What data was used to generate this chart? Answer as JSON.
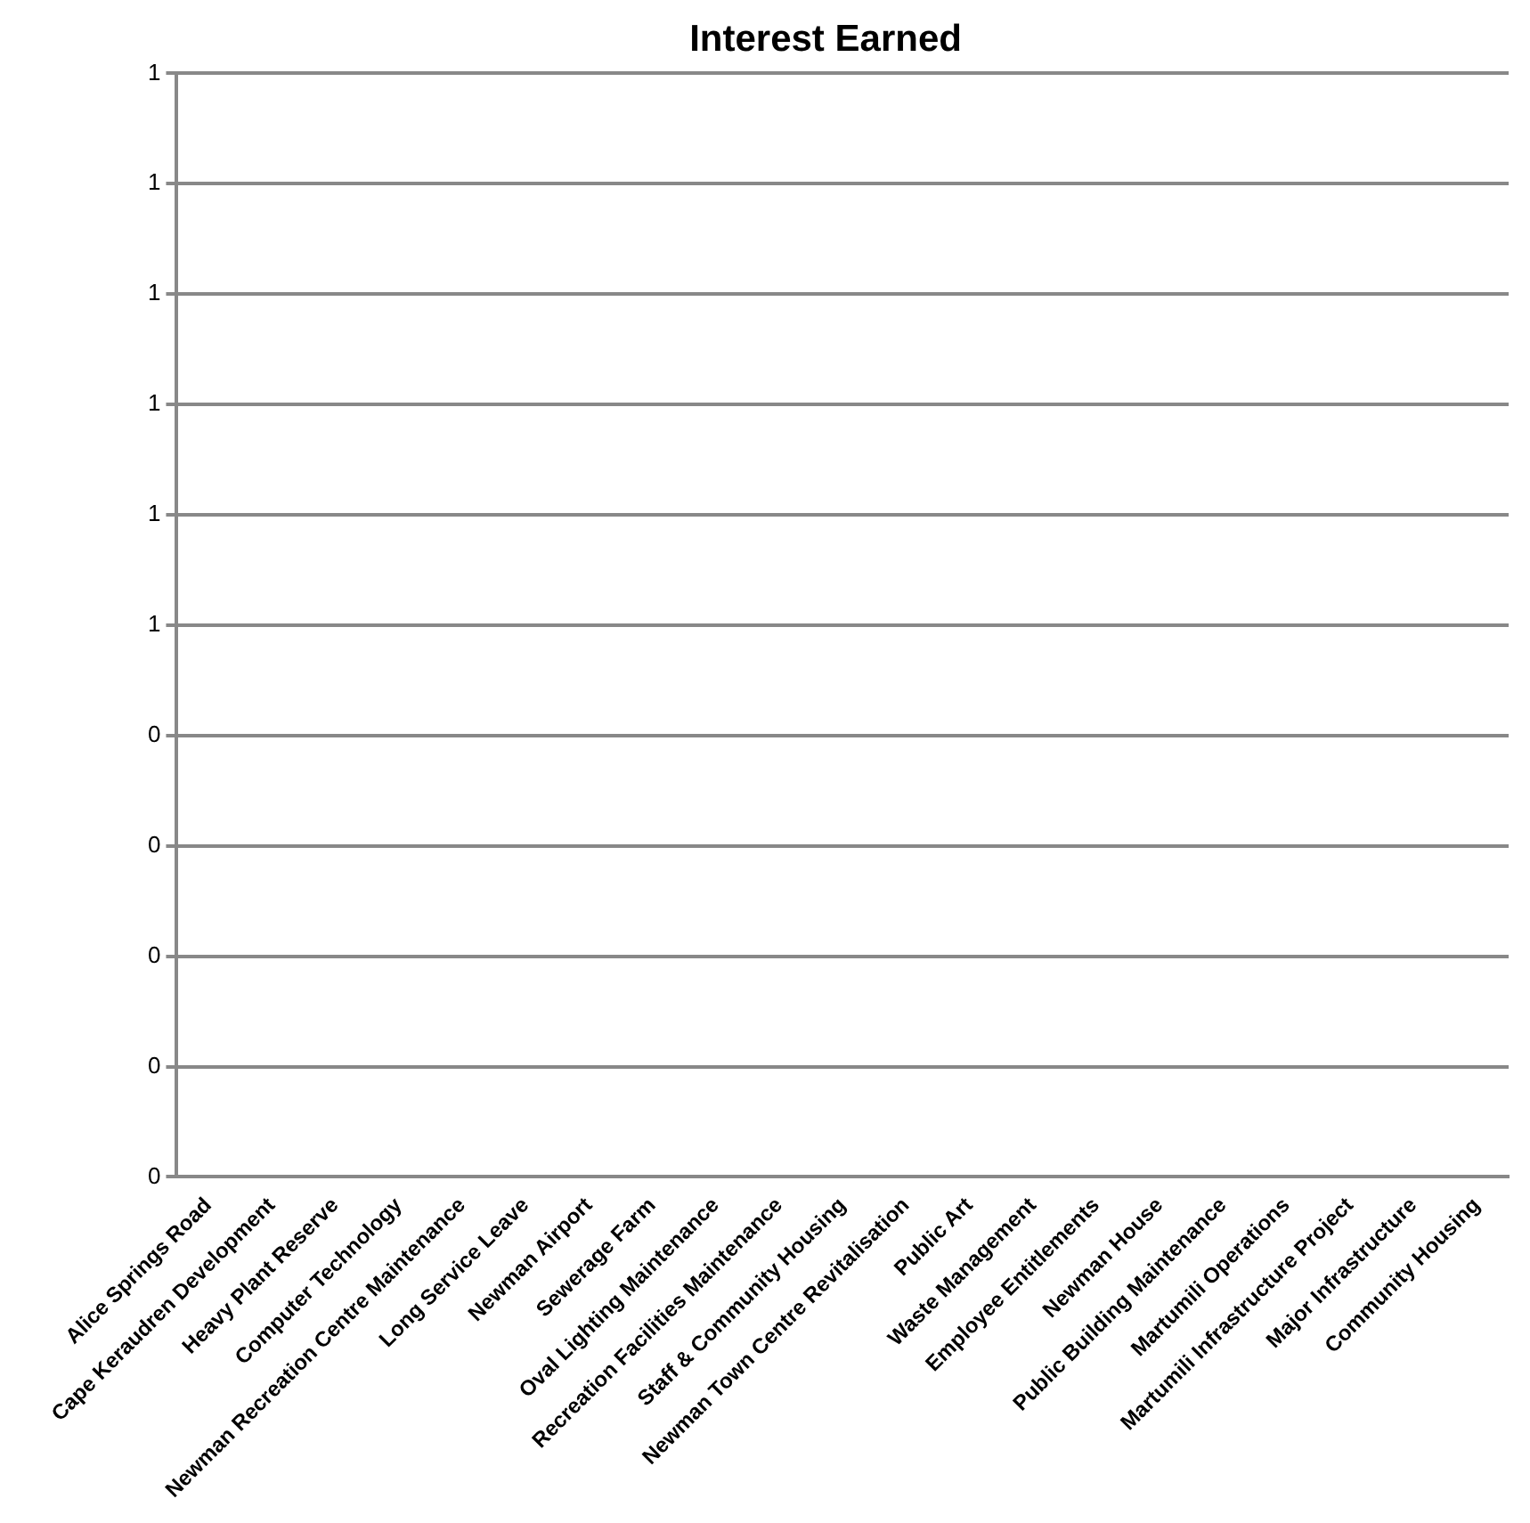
{
  "chart_data": {
    "type": "bar",
    "title": "Interest Earned",
    "categories": [
      "Alice Springs Road",
      "Cape Keraudren Development",
      "Heavy Plant Reserve",
      "Computer Technology",
      "Newman Recreation Centre Maintenance",
      "Long Service Leave",
      "Newman Airport",
      "Sewerage Farm",
      "Oval Lighting Maintenance",
      "Recreation Facilities Maintenance",
      "Staff & Community Housing",
      "Newman Town Centre Revitalisation",
      "Public Art",
      "Waste Management",
      "Employee Entitlements",
      "Newman House",
      "Public Building Maintenance",
      "Martumili Operations",
      "Martumili Infrastructure Project",
      "Major Infrastructure",
      "Community Housing"
    ],
    "values": [
      0,
      0,
      0,
      0,
      0,
      0,
      0,
      0,
      0,
      0,
      0,
      0,
      0,
      0,
      0,
      0,
      0,
      0,
      0,
      0,
      0
    ],
    "ylim": [
      0,
      1
    ],
    "yticks": [
      {
        "value": 0,
        "label": "0"
      },
      {
        "value": 0.1,
        "label": "0"
      },
      {
        "value": 0.2,
        "label": "0"
      },
      {
        "value": 0.3,
        "label": "0"
      },
      {
        "value": 0.4,
        "label": "0"
      },
      {
        "value": 0.5,
        "label": "1"
      },
      {
        "value": 0.6,
        "label": "1"
      },
      {
        "value": 0.7,
        "label": "1"
      },
      {
        "value": 0.8,
        "label": "1"
      },
      {
        "value": 0.9,
        "label": "1"
      },
      {
        "value": 1,
        "label": "1"
      }
    ],
    "grid": "y"
  }
}
